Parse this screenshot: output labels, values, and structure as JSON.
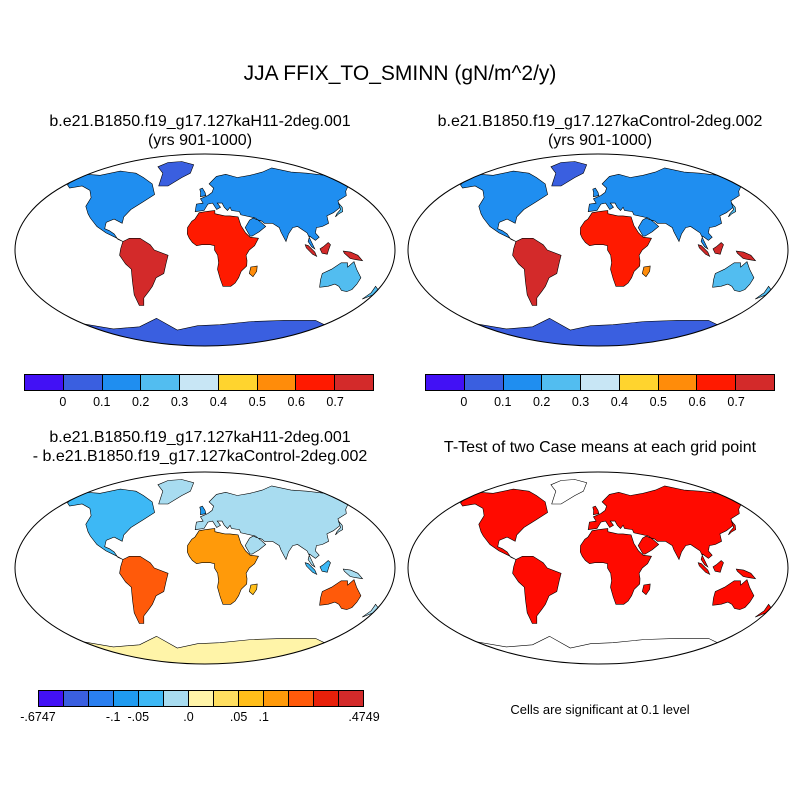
{
  "title": "JJA FFIX_TO_SMINN (gN/m^2/y)",
  "panels": {
    "top_left": {
      "case": "b.e21.B1850.f19_g17.127kaH11-2deg.001",
      "period": "(yrs 901-1000)"
    },
    "top_right": {
      "case": "b.e21.B1850.f19_g17.127kaControl-2deg.002",
      "period": "(yrs 901-1000)"
    },
    "bottom_left": {
      "line1": "b.e21.B1850.f19_g17.127kaH11-2deg.001",
      "line2": "- b.e21.B1850.f19_g17.127kaControl-2deg.002"
    },
    "bottom_right": {
      "title": "T-Test of two Case means at each grid point",
      "note": "Cells are significant at 0.1 level"
    }
  },
  "colorbar_main": {
    "colors": [
      "#4211f5",
      "#3a5fe0",
      "#1f8ef0",
      "#52bdf0",
      "#c8e6f5",
      "#ffd42e",
      "#ff8c0a",
      "#ff1a00",
      "#d32a2a"
    ],
    "labels": [
      "0",
      "0.1",
      "0.2",
      "0.3",
      "0.4",
      "0.5",
      "0.6",
      "0.7"
    ]
  },
  "colorbar_diff": {
    "colors": [
      "#4211f5",
      "#3a5fe0",
      "#2a7ff0",
      "#1f9bf0",
      "#3db8f5",
      "#a8dcf0",
      "#fff4a8",
      "#ffdf60",
      "#ffbe1a",
      "#ff9a0a",
      "#ff5a0a",
      "#e8200a",
      "#d32a2a"
    ],
    "labels": [
      "-.6747",
      "-.1",
      "-.05",
      ".0",
      ".05",
      ".1",
      ".4749"
    ]
  },
  "ttest_color": "#ff0a00"
}
